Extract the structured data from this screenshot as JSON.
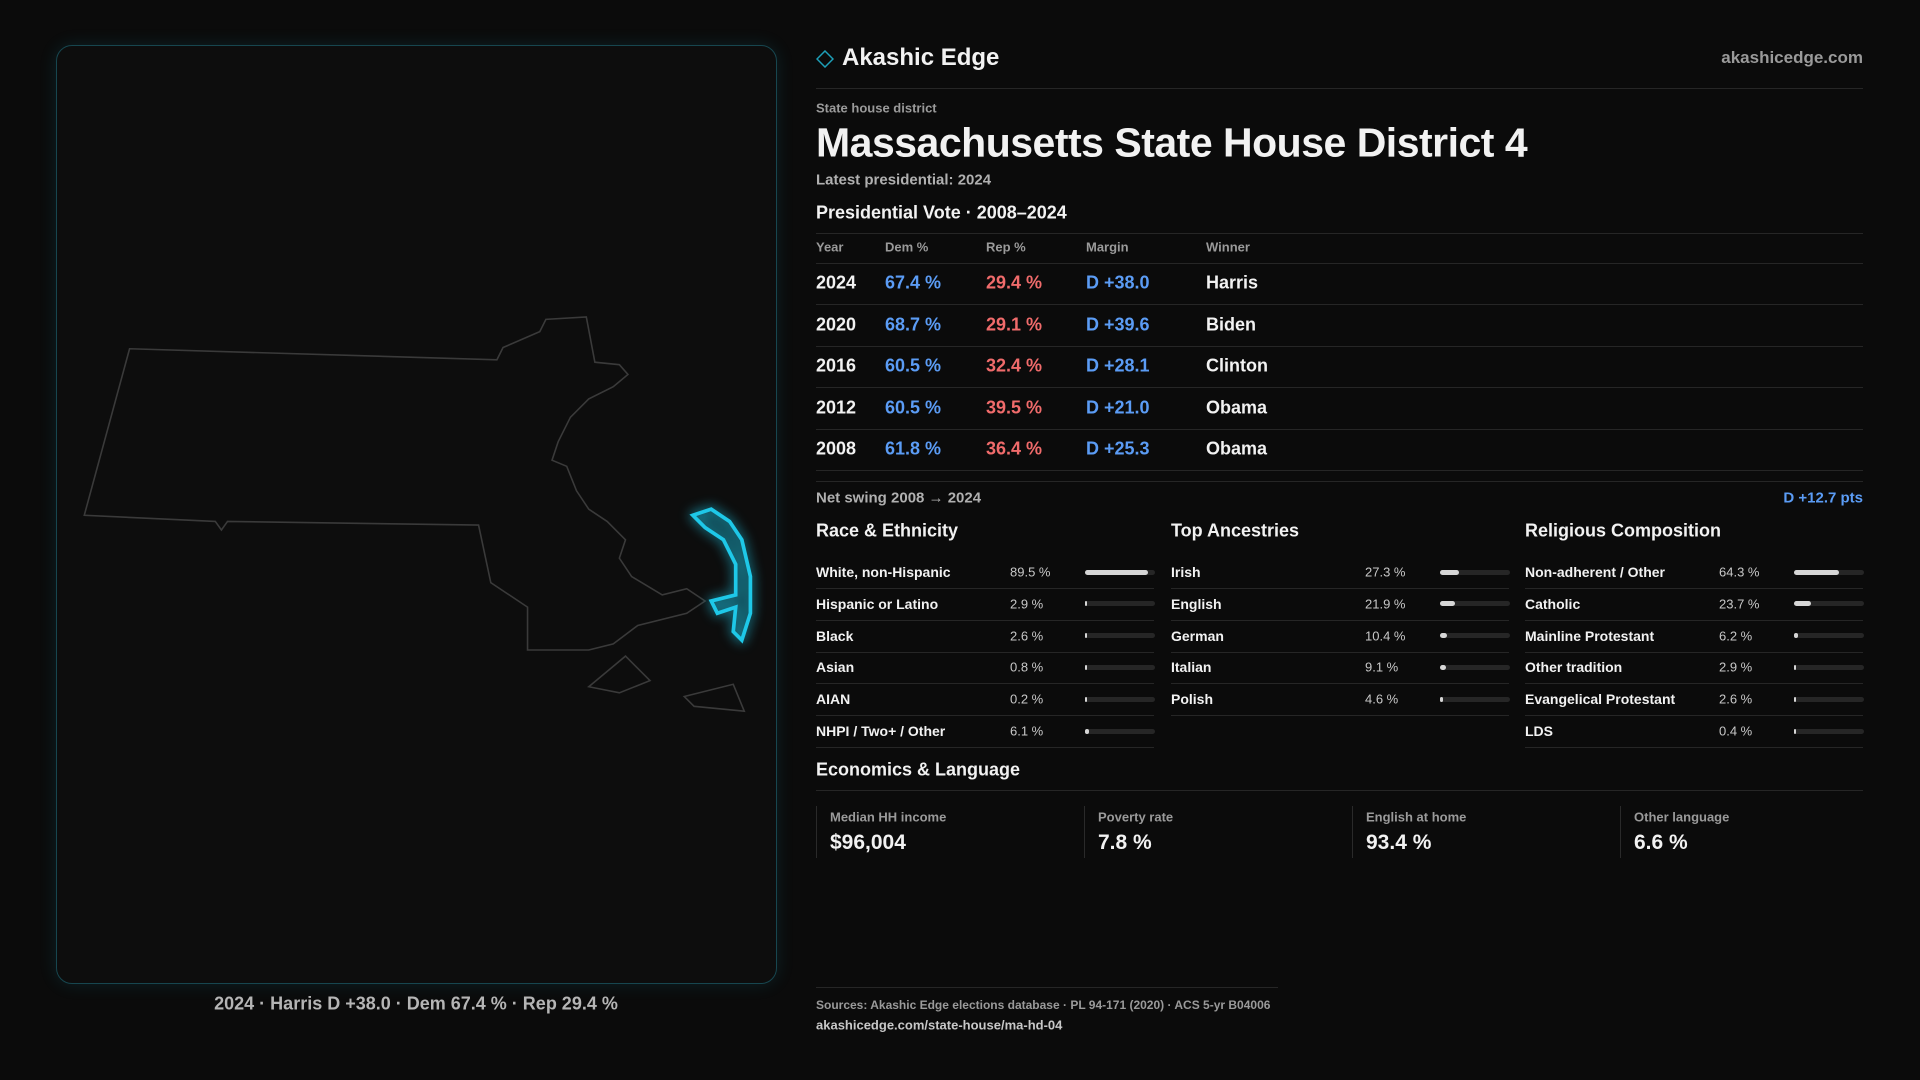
{
  "brand": {
    "name": "Akashic Edge",
    "domain": "akashicedge.com"
  },
  "header": {
    "kicker": "State house district",
    "title": "Massachusetts State House District 4",
    "subtitle": "Latest presidential: 2024"
  },
  "vote_table": {
    "title": "Presidential Vote · 2008–2024",
    "columns": [
      "Year",
      "Dem %",
      "Rep %",
      "Margin",
      "Winner"
    ],
    "rows": [
      [
        "2024",
        "67.4 %",
        "29.4 %",
        "D +38.0",
        "Harris"
      ],
      [
        "2020",
        "68.7 %",
        "29.1 %",
        "D +39.6",
        "Biden"
      ],
      [
        "2016",
        "60.5 %",
        "32.4 %",
        "D +28.1",
        "Clinton"
      ],
      [
        "2012",
        "60.5 %",
        "39.5 %",
        "D +21.0",
        "Obama"
      ],
      [
        "2008",
        "61.8 %",
        "36.4 %",
        "D +25.3",
        "Obama"
      ]
    ]
  },
  "net_swing": {
    "label": "Net swing 2008 → 2024",
    "value": "D +12.7 pts"
  },
  "panels": [
    {
      "title": "Race & Ethnicity",
      "rows": [
        {
          "name": "White, non-Hispanic",
          "value": 89.5,
          "value_label": "89.5 %"
        },
        {
          "name": "Hispanic or Latino",
          "value": 2.9,
          "value_label": "2.9 %"
        },
        {
          "name": "Black",
          "value": 2.6,
          "value_label": "2.6 %"
        },
        {
          "name": "Asian",
          "value": 0.8,
          "value_label": "0.8 %"
        },
        {
          "name": "AIAN",
          "value": 0.2,
          "value_label": "0.2 %"
        },
        {
          "name": "NHPI / Two+ / Other",
          "value": 6.1,
          "value_label": "6.1 %"
        }
      ]
    },
    {
      "title": "Top Ancestries",
      "rows": [
        {
          "name": "Irish",
          "value": 27.3,
          "value_label": "27.3 %"
        },
        {
          "name": "English",
          "value": 21.9,
          "value_label": "21.9 %"
        },
        {
          "name": "German",
          "value": 10.4,
          "value_label": "10.4 %"
        },
        {
          "name": "Italian",
          "value": 9.1,
          "value_label": "9.1 %"
        },
        {
          "name": "Polish",
          "value": 4.6,
          "value_label": "4.6 %"
        }
      ]
    },
    {
      "title": "Religious Composition",
      "rows": [
        {
          "name": "Non-adherent / Other",
          "value": 64.3,
          "value_label": "64.3 %"
        },
        {
          "name": "Catholic",
          "value": 23.7,
          "value_label": "23.7 %"
        },
        {
          "name": "Mainline Protestant",
          "value": 6.2,
          "value_label": "6.2 %"
        },
        {
          "name": "Other tradition",
          "value": 2.9,
          "value_label": "2.9 %"
        },
        {
          "name": "Evangelical Protestant",
          "value": 2.6,
          "value_label": "2.6 %"
        },
        {
          "name": "LDS",
          "value": 0.4,
          "value_label": "0.4 %"
        }
      ]
    }
  ],
  "economics": {
    "title": "Economics & Language",
    "cards": [
      {
        "label": "Median HH income",
        "value": "$96,004"
      },
      {
        "label": "Poverty rate",
        "value": "7.8 %"
      },
      {
        "label": "English at home",
        "value": "93.4 %"
      },
      {
        "label": "Other language",
        "value": "6.6 %"
      }
    ]
  },
  "map_caption": "2024 · Harris D +38.0 · Dem 67.4 % · Rep 29.4 %",
  "footer": {
    "sources": "Sources: Akashic Edge elections database · PL 94-171 (2020) · ACS 5-yr B04006",
    "url": "akashicedge.com/state-house/ma-hd-04"
  }
}
